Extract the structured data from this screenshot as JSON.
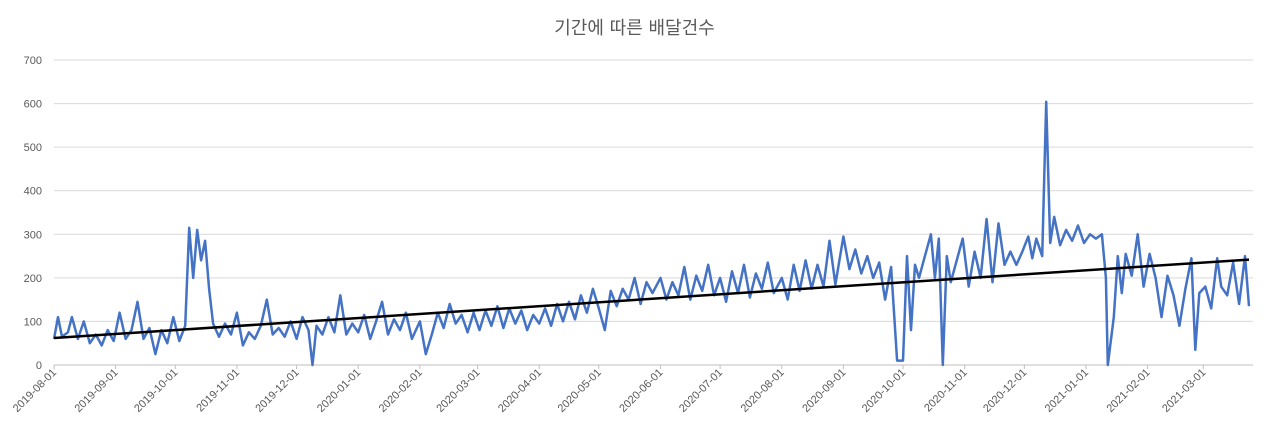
{
  "chart_data": {
    "type": "line",
    "title": "기간에 따른 배달건수",
    "xlabel": "",
    "ylabel": "",
    "ylim": [
      0,
      700
    ],
    "yticks": [
      0,
      100,
      200,
      300,
      400,
      500,
      600,
      700
    ],
    "x_range": [
      "2019-08-01",
      "2021-03-12"
    ],
    "x_tick_labels": [
      "2019-08-01",
      "2019-09-01",
      "2019-10-01",
      "2019-11-01",
      "2019-12-01",
      "2020-01-01",
      "2020-02-01",
      "2020-03-01",
      "2020-04-01",
      "2020-05-01",
      "2020-06-01",
      "2020-07-01",
      "2020-08-01",
      "2020-09-01",
      "2020-10-01",
      "2020-11-01",
      "2020-12-01",
      "2021-01-01",
      "2021-02-01",
      "2021-03-01"
    ],
    "grid": true,
    "legend": "none",
    "series": [
      {
        "color": "#4472C4",
        "points": [
          [
            "2019-08-01",
            60
          ],
          [
            "2019-08-03",
            110
          ],
          [
            "2019-08-05",
            65
          ],
          [
            "2019-08-08",
            75
          ],
          [
            "2019-08-10",
            110
          ],
          [
            "2019-08-13",
            60
          ],
          [
            "2019-08-16",
            100
          ],
          [
            "2019-08-19",
            50
          ],
          [
            "2019-08-22",
            70
          ],
          [
            "2019-08-25",
            45
          ],
          [
            "2019-08-28",
            80
          ],
          [
            "2019-08-31",
            55
          ],
          [
            "2019-09-03",
            120
          ],
          [
            "2019-09-06",
            60
          ],
          [
            "2019-09-09",
            80
          ],
          [
            "2019-09-12",
            145
          ],
          [
            "2019-09-15",
            60
          ],
          [
            "2019-09-18",
            85
          ],
          [
            "2019-09-21",
            25
          ],
          [
            "2019-09-24",
            80
          ],
          [
            "2019-09-27",
            50
          ],
          [
            "2019-09-30",
            110
          ],
          [
            "2019-10-03",
            55
          ],
          [
            "2019-10-06",
            90
          ],
          [
            "2019-10-08",
            315
          ],
          [
            "2019-10-10",
            200
          ],
          [
            "2019-10-12",
            310
          ],
          [
            "2019-10-14",
            240
          ],
          [
            "2019-10-16",
            285
          ],
          [
            "2019-10-18",
            175
          ],
          [
            "2019-10-20",
            95
          ],
          [
            "2019-10-23",
            65
          ],
          [
            "2019-10-26",
            95
          ],
          [
            "2019-10-29",
            70
          ],
          [
            "2019-11-01",
            120
          ],
          [
            "2019-11-04",
            45
          ],
          [
            "2019-11-07",
            75
          ],
          [
            "2019-11-10",
            60
          ],
          [
            "2019-11-13",
            90
          ],
          [
            "2019-11-16",
            150
          ],
          [
            "2019-11-19",
            70
          ],
          [
            "2019-11-22",
            85
          ],
          [
            "2019-11-25",
            65
          ],
          [
            "2019-11-28",
            100
          ],
          [
            "2019-12-01",
            60
          ],
          [
            "2019-12-04",
            110
          ],
          [
            "2019-12-07",
            80
          ],
          [
            "2019-12-09",
            0
          ],
          [
            "2019-12-11",
            90
          ],
          [
            "2019-12-14",
            70
          ],
          [
            "2019-12-17",
            110
          ],
          [
            "2019-12-20",
            75
          ],
          [
            "2019-12-23",
            160
          ],
          [
            "2019-12-26",
            70
          ],
          [
            "2019-12-29",
            95
          ],
          [
            "2020-01-01",
            75
          ],
          [
            "2020-01-04",
            115
          ],
          [
            "2020-01-07",
            60
          ],
          [
            "2020-01-10",
            100
          ],
          [
            "2020-01-13",
            145
          ],
          [
            "2020-01-16",
            70
          ],
          [
            "2020-01-19",
            105
          ],
          [
            "2020-01-22",
            80
          ],
          [
            "2020-01-25",
            120
          ],
          [
            "2020-01-28",
            60
          ],
          [
            "2020-02-01",
            100
          ],
          [
            "2020-02-04",
            25
          ],
          [
            "2020-02-07",
            70
          ],
          [
            "2020-02-10",
            120
          ],
          [
            "2020-02-13",
            85
          ],
          [
            "2020-02-16",
            140
          ],
          [
            "2020-02-19",
            95
          ],
          [
            "2020-02-22",
            115
          ],
          [
            "2020-02-25",
            75
          ],
          [
            "2020-02-28",
            120
          ],
          [
            "2020-03-02",
            80
          ],
          [
            "2020-03-05",
            125
          ],
          [
            "2020-03-08",
            90
          ],
          [
            "2020-03-11",
            135
          ],
          [
            "2020-03-14",
            85
          ],
          [
            "2020-03-17",
            130
          ],
          [
            "2020-03-20",
            95
          ],
          [
            "2020-03-23",
            125
          ],
          [
            "2020-03-26",
            80
          ],
          [
            "2020-03-29",
            115
          ],
          [
            "2020-04-01",
            95
          ],
          [
            "2020-04-04",
            130
          ],
          [
            "2020-04-07",
            90
          ],
          [
            "2020-04-10",
            140
          ],
          [
            "2020-04-13",
            100
          ],
          [
            "2020-04-16",
            145
          ],
          [
            "2020-04-19",
            105
          ],
          [
            "2020-04-22",
            160
          ],
          [
            "2020-04-25",
            120
          ],
          [
            "2020-04-28",
            175
          ],
          [
            "2020-05-01",
            130
          ],
          [
            "2020-05-04",
            80
          ],
          [
            "2020-05-07",
            170
          ],
          [
            "2020-05-10",
            135
          ],
          [
            "2020-05-13",
            175
          ],
          [
            "2020-05-16",
            150
          ],
          [
            "2020-05-19",
            200
          ],
          [
            "2020-05-22",
            140
          ],
          [
            "2020-05-25",
            190
          ],
          [
            "2020-05-28",
            165
          ],
          [
            "2020-06-01",
            200
          ],
          [
            "2020-06-04",
            150
          ],
          [
            "2020-06-07",
            190
          ],
          [
            "2020-06-10",
            160
          ],
          [
            "2020-06-13",
            225
          ],
          [
            "2020-06-16",
            150
          ],
          [
            "2020-06-19",
            205
          ],
          [
            "2020-06-22",
            170
          ],
          [
            "2020-06-25",
            230
          ],
          [
            "2020-06-28",
            160
          ],
          [
            "2020-07-01",
            200
          ],
          [
            "2020-07-04",
            145
          ],
          [
            "2020-07-07",
            215
          ],
          [
            "2020-07-10",
            165
          ],
          [
            "2020-07-13",
            230
          ],
          [
            "2020-07-16",
            155
          ],
          [
            "2020-07-19",
            210
          ],
          [
            "2020-07-22",
            175
          ],
          [
            "2020-07-25",
            235
          ],
          [
            "2020-07-28",
            165
          ],
          [
            "2020-08-01",
            200
          ],
          [
            "2020-08-04",
            150
          ],
          [
            "2020-08-07",
            230
          ],
          [
            "2020-08-10",
            170
          ],
          [
            "2020-08-13",
            240
          ],
          [
            "2020-08-16",
            175
          ],
          [
            "2020-08-19",
            230
          ],
          [
            "2020-08-22",
            180
          ],
          [
            "2020-08-25",
            285
          ],
          [
            "2020-08-28",
            185
          ],
          [
            "2020-09-01",
            295
          ],
          [
            "2020-09-04",
            220
          ],
          [
            "2020-09-07",
            265
          ],
          [
            "2020-09-10",
            210
          ],
          [
            "2020-09-13",
            250
          ],
          [
            "2020-09-16",
            200
          ],
          [
            "2020-09-19",
            235
          ],
          [
            "2020-09-22",
            150
          ],
          [
            "2020-09-25",
            225
          ],
          [
            "2020-09-28",
            10
          ],
          [
            "2020-10-01",
            10
          ],
          [
            "2020-10-03",
            250
          ],
          [
            "2020-10-05",
            80
          ],
          [
            "2020-10-07",
            230
          ],
          [
            "2020-10-09",
            200
          ],
          [
            "2020-10-12",
            250
          ],
          [
            "2020-10-15",
            300
          ],
          [
            "2020-10-17",
            200
          ],
          [
            "2020-10-19",
            290
          ],
          [
            "2020-10-21",
            0
          ],
          [
            "2020-10-23",
            250
          ],
          [
            "2020-10-25",
            190
          ],
          [
            "2020-10-28",
            240
          ],
          [
            "2020-10-31",
            290
          ],
          [
            "2020-11-03",
            180
          ],
          [
            "2020-11-06",
            260
          ],
          [
            "2020-11-09",
            200
          ],
          [
            "2020-11-12",
            335
          ],
          [
            "2020-11-15",
            190
          ],
          [
            "2020-11-18",
            325
          ],
          [
            "2020-11-21",
            230
          ],
          [
            "2020-11-24",
            260
          ],
          [
            "2020-11-27",
            230
          ],
          [
            "2020-11-30",
            260
          ],
          [
            "2020-12-03",
            295
          ],
          [
            "2020-12-05",
            245
          ],
          [
            "2020-12-07",
            290
          ],
          [
            "2020-12-10",
            250
          ],
          [
            "2020-12-12",
            604
          ],
          [
            "2020-12-14",
            280
          ],
          [
            "2020-12-16",
            340
          ],
          [
            "2020-12-19",
            275
          ],
          [
            "2020-12-22",
            310
          ],
          [
            "2020-12-25",
            285
          ],
          [
            "2020-12-28",
            320
          ],
          [
            "2020-12-31",
            280
          ],
          [
            "2021-01-03",
            300
          ],
          [
            "2021-01-06",
            290
          ],
          [
            "2021-01-09",
            300
          ],
          [
            "2021-01-11",
            200
          ],
          [
            "2021-01-12",
            0
          ],
          [
            "2021-01-15",
            110
          ],
          [
            "2021-01-17",
            250
          ],
          [
            "2021-01-19",
            165
          ],
          [
            "2021-01-21",
            255
          ],
          [
            "2021-01-24",
            205
          ],
          [
            "2021-01-27",
            300
          ],
          [
            "2021-01-30",
            180
          ],
          [
            "2021-02-02",
            255
          ],
          [
            "2021-02-05",
            200
          ],
          [
            "2021-02-08",
            110
          ],
          [
            "2021-02-11",
            205
          ],
          [
            "2021-02-14",
            160
          ],
          [
            "2021-02-17",
            90
          ],
          [
            "2021-02-20",
            175
          ],
          [
            "2021-02-23",
            245
          ],
          [
            "2021-02-25",
            35
          ],
          [
            "2021-02-27",
            165
          ],
          [
            "2021-03-02",
            180
          ],
          [
            "2021-03-05",
            130
          ],
          [
            "2021-03-08",
            245
          ],
          [
            "2021-03-10",
            180
          ],
          [
            "2021-03-13",
            160
          ],
          [
            "2021-03-16",
            235
          ],
          [
            "2021-03-19",
            140
          ],
          [
            "2021-03-22",
            250
          ],
          [
            "2021-03-24",
            135
          ]
        ]
      },
      {
        "color": "#000000",
        "points": [
          [
            "2019-08-01",
            62
          ],
          [
            "2021-03-24",
            242
          ]
        ]
      }
    ]
  }
}
